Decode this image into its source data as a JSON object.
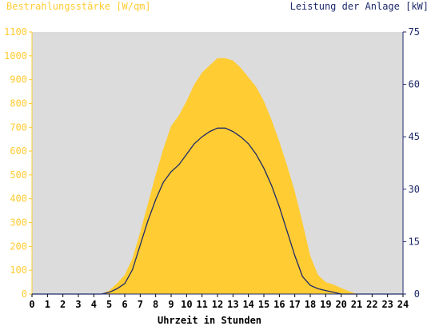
{
  "chart_data": {
    "type": "area",
    "left_axis_title": "Bestrahlungsstärke [W/qm]",
    "right_axis_title": "Leistung der Anlage [kW]",
    "xlabel": "Uhrzeit in Stunden",
    "x_ticks": [
      "0",
      "1",
      "2",
      "3",
      "4",
      "5",
      "6",
      "7",
      "8",
      "9",
      "10",
      "11",
      "12",
      "13",
      "14",
      "15",
      "16",
      "17",
      "18",
      "19",
      "20",
      "21",
      "22",
      "23",
      "24"
    ],
    "left_ticks": [
      "0",
      "100",
      "200",
      "300",
      "400",
      "500",
      "600",
      "700",
      "800",
      "900",
      "1000",
      "1100"
    ],
    "right_ticks": [
      "0",
      "15",
      "30",
      "45",
      "60",
      "75"
    ],
    "xlim": [
      0,
      24
    ],
    "ylim_left": [
      0,
      1100
    ],
    "ylim_right": [
      0,
      75
    ],
    "colors": {
      "plot_background": "#dcdcdc",
      "irradiance_fill": "#ffcc33",
      "power_line": "#1f2a6b",
      "left_axis": "#ffcc33",
      "right_axis": "#1f2a6b"
    },
    "series": [
      {
        "name": "Bestrahlungsstärke [W/qm]",
        "axis": "left",
        "render": "area",
        "x": [
          0,
          4.5,
          5,
          5.5,
          6,
          6.5,
          7,
          7.5,
          8,
          8.5,
          9,
          9.5,
          10,
          10.5,
          11,
          11.5,
          12,
          12.5,
          13,
          13.5,
          14,
          14.5,
          15,
          15.5,
          16,
          16.5,
          17,
          17.5,
          18,
          18.5,
          19,
          19.5,
          20,
          20.5,
          21,
          24
        ],
        "y": [
          0,
          0,
          15,
          45,
          80,
          150,
          260,
          380,
          500,
          610,
          705,
          750,
          810,
          880,
          930,
          960,
          990,
          990,
          980,
          950,
          910,
          870,
          810,
          730,
          640,
          540,
          430,
          300,
          160,
          80,
          50,
          40,
          25,
          12,
          0,
          0
        ]
      },
      {
        "name": "Leistung der Anlage [kW]",
        "axis": "right",
        "render": "line",
        "x": [
          0,
          4.5,
          5,
          5.5,
          6,
          6.5,
          7,
          7.5,
          8,
          8.5,
          9,
          9.5,
          10,
          10.5,
          11,
          11.5,
          12,
          12.5,
          13,
          13.5,
          14,
          14.5,
          15,
          15.5,
          16,
          16.5,
          17,
          17.5,
          18,
          18.5,
          19,
          19.5,
          20,
          20.5,
          21,
          24
        ],
        "y": [
          0,
          0,
          0.5,
          1.5,
          3,
          7,
          14,
          21,
          27,
          32,
          35,
          37,
          40,
          43,
          45,
          46.5,
          47.5,
          47.5,
          46.5,
          45,
          43,
          40,
          36,
          31,
          25,
          18,
          11,
          5,
          2.5,
          1.5,
          1,
          0.5,
          0,
          0,
          0,
          0
        ]
      }
    ]
  }
}
